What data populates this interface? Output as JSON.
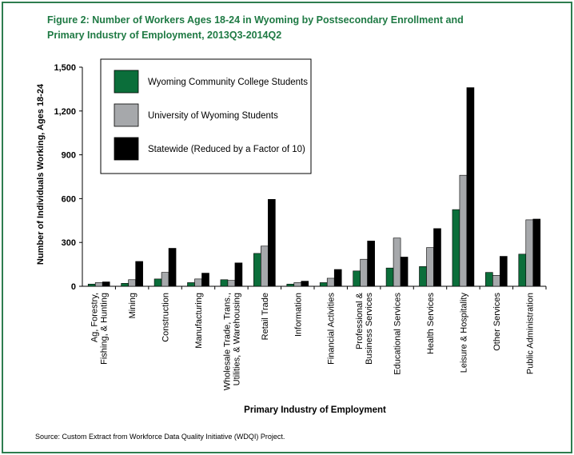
{
  "title_line1": "Figure 2: Number of Workers Ages 18-24 in Wyoming by Postsecondary Enrollment and",
  "title_line2": "Primary Industry of Employment, 2013Q3-2014Q2",
  "source": "Source: Custom Extract from Workforce Data Quality Initiative (WDQI) Project.",
  "colors": {
    "community_college": "#0b6e3a",
    "university": "#a6a8ab",
    "statewide": "#000000",
    "frame": "#2e7d4f",
    "title": "#1f7a44"
  },
  "chart_data": {
    "type": "bar",
    "title": "Figure 2: Number of Workers Ages 18-24 in Wyoming by Postsecondary Enrollment and Primary Industry of Employment, 2013Q3-2014Q2",
    "xlabel": "Primary Industry of Employment",
    "ylabel": "Number of Individuals Working, Ages 18-24",
    "ylim": [
      0,
      1500
    ],
    "yticks": [
      "0",
      "300",
      "600",
      "900",
      "1,200",
      "1,500"
    ],
    "ytick_values": [
      0,
      300,
      600,
      900,
      1200,
      1500
    ],
    "grid": false,
    "legend_position": "top-left",
    "categories": [
      "Ag, Forestry, Fishing, & Hunting",
      "Mining",
      "Construction",
      "Manufacturing",
      "Wholesale Trade, Trans., Utilities, & Warehousing",
      "Retail Trade",
      "Information",
      "Financial Activities",
      "Professional & Business Services",
      "Educational Services",
      "Health Services",
      "Leisure & Hospitality",
      "Other Services",
      "Public Administration"
    ],
    "category_lines": [
      [
        "Ag, Forestry,",
        "Fishing, & Hunting"
      ],
      [
        "Mining"
      ],
      [
        "Construction"
      ],
      [
        "Manufacturing"
      ],
      [
        "Wholesale Trade, Trans.,",
        "Utilities, & Warehousing"
      ],
      [
        "Retail Trade"
      ],
      [
        "Information"
      ],
      [
        "Financial Activities"
      ],
      [
        "Professional &",
        "Business Services"
      ],
      [
        "Educational Services"
      ],
      [
        "Health Services"
      ],
      [
        "Leisure & Hospitality"
      ],
      [
        "Other Services"
      ],
      [
        "Public Administration"
      ]
    ],
    "series": [
      {
        "name": "Wyoming Community College Students",
        "color": "#0b6e3a",
        "values": [
          15,
          20,
          50,
          25,
          45,
          225,
          15,
          25,
          105,
          125,
          135,
          525,
          95,
          220
        ]
      },
      {
        "name": "University of Wyoming Students",
        "color": "#a6a8ab",
        "values": [
          25,
          45,
          95,
          50,
          40,
          275,
          25,
          55,
          185,
          330,
          265,
          760,
          75,
          455
        ]
      },
      {
        "name": "Statewide (Reduced by a Factor of 10)",
        "color": "#000000",
        "values": [
          30,
          170,
          260,
          90,
          160,
          595,
          35,
          115,
          310,
          200,
          395,
          1360,
          205,
          460
        ]
      }
    ]
  }
}
